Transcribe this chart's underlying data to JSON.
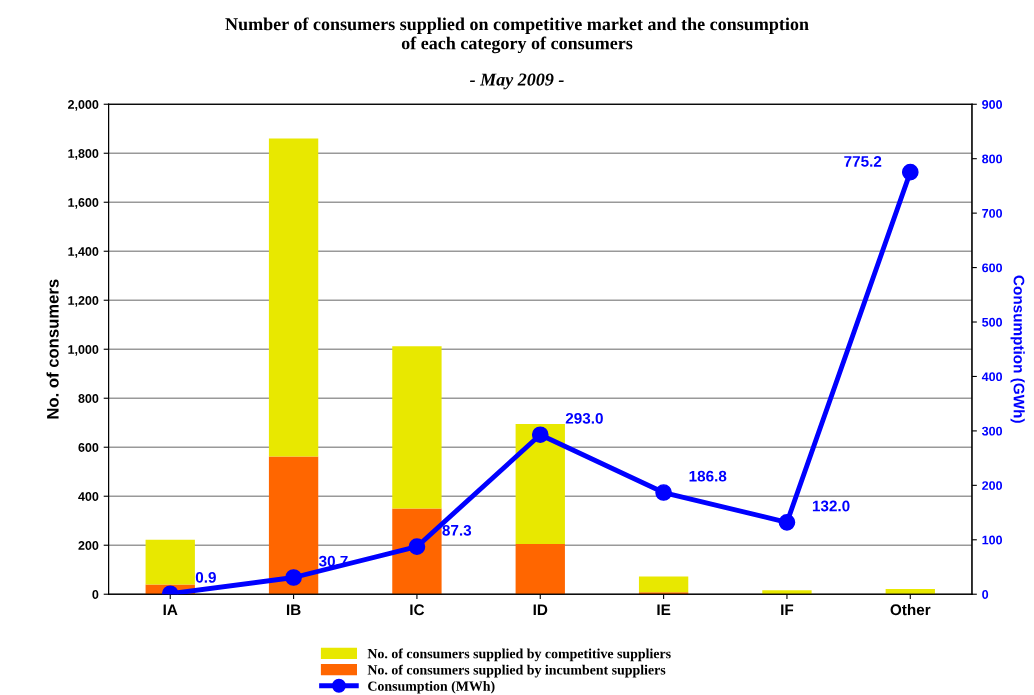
{
  "chart_data": {
    "type": "bar",
    "title": "Number of consumers supplied on competitive market and the consumption\nof each category of consumers",
    "subtitle": "- May 2009 -",
    "categories": [
      "IA",
      "IB",
      "IC",
      "ID",
      "IE",
      "IF",
      "Other"
    ],
    "stacked": true,
    "ylabel": "No. of consumers",
    "y2label": "Consumption (GWh)",
    "series": [
      {
        "name": "No. of consumers supplied by incumbent suppliers",
        "color": "#ff6600",
        "values": [
          40,
          562,
          350,
          205,
          8,
          null,
          null
        ]
      },
      {
        "name": "No. of consumers supplied by competitive suppliers",
        "color": "#e8e800",
        "values": [
          182,
          1298,
          662,
          490,
          64,
          16,
          21
        ]
      },
      {
        "name": "Consumption (MWh)",
        "type": "line",
        "axis": "y2",
        "color": "#0000ff",
        "marker": "circle",
        "values": [
          0.9,
          30.7,
          87.3,
          293.0,
          186.8,
          132.0,
          775.2
        ],
        "value_labels": [
          "0.9",
          "30.7",
          "87.3",
          "293.0",
          "186.8",
          "132.0",
          "775.2"
        ]
      }
    ],
    "ylim": [
      0,
      2000
    ],
    "yticks": [
      0,
      200,
      400,
      600,
      800,
      {
        "value": 1000,
        "label": "1,000"
      },
      {
        "value": 1200,
        "label": "1,200"
      },
      {
        "value": 1400,
        "label": "1,400"
      },
      {
        "value": 1600,
        "label": "1,600"
      },
      {
        "value": 1800,
        "label": "1,800"
      },
      {
        "value": 2000,
        "label": "2,000"
      }
    ],
    "y2lim": [
      0,
      900
    ],
    "y2ticks": [
      0,
      100,
      200,
      300,
      400,
      500,
      600,
      700,
      800,
      900
    ],
    "grid": "y",
    "legend": "bottom"
  }
}
